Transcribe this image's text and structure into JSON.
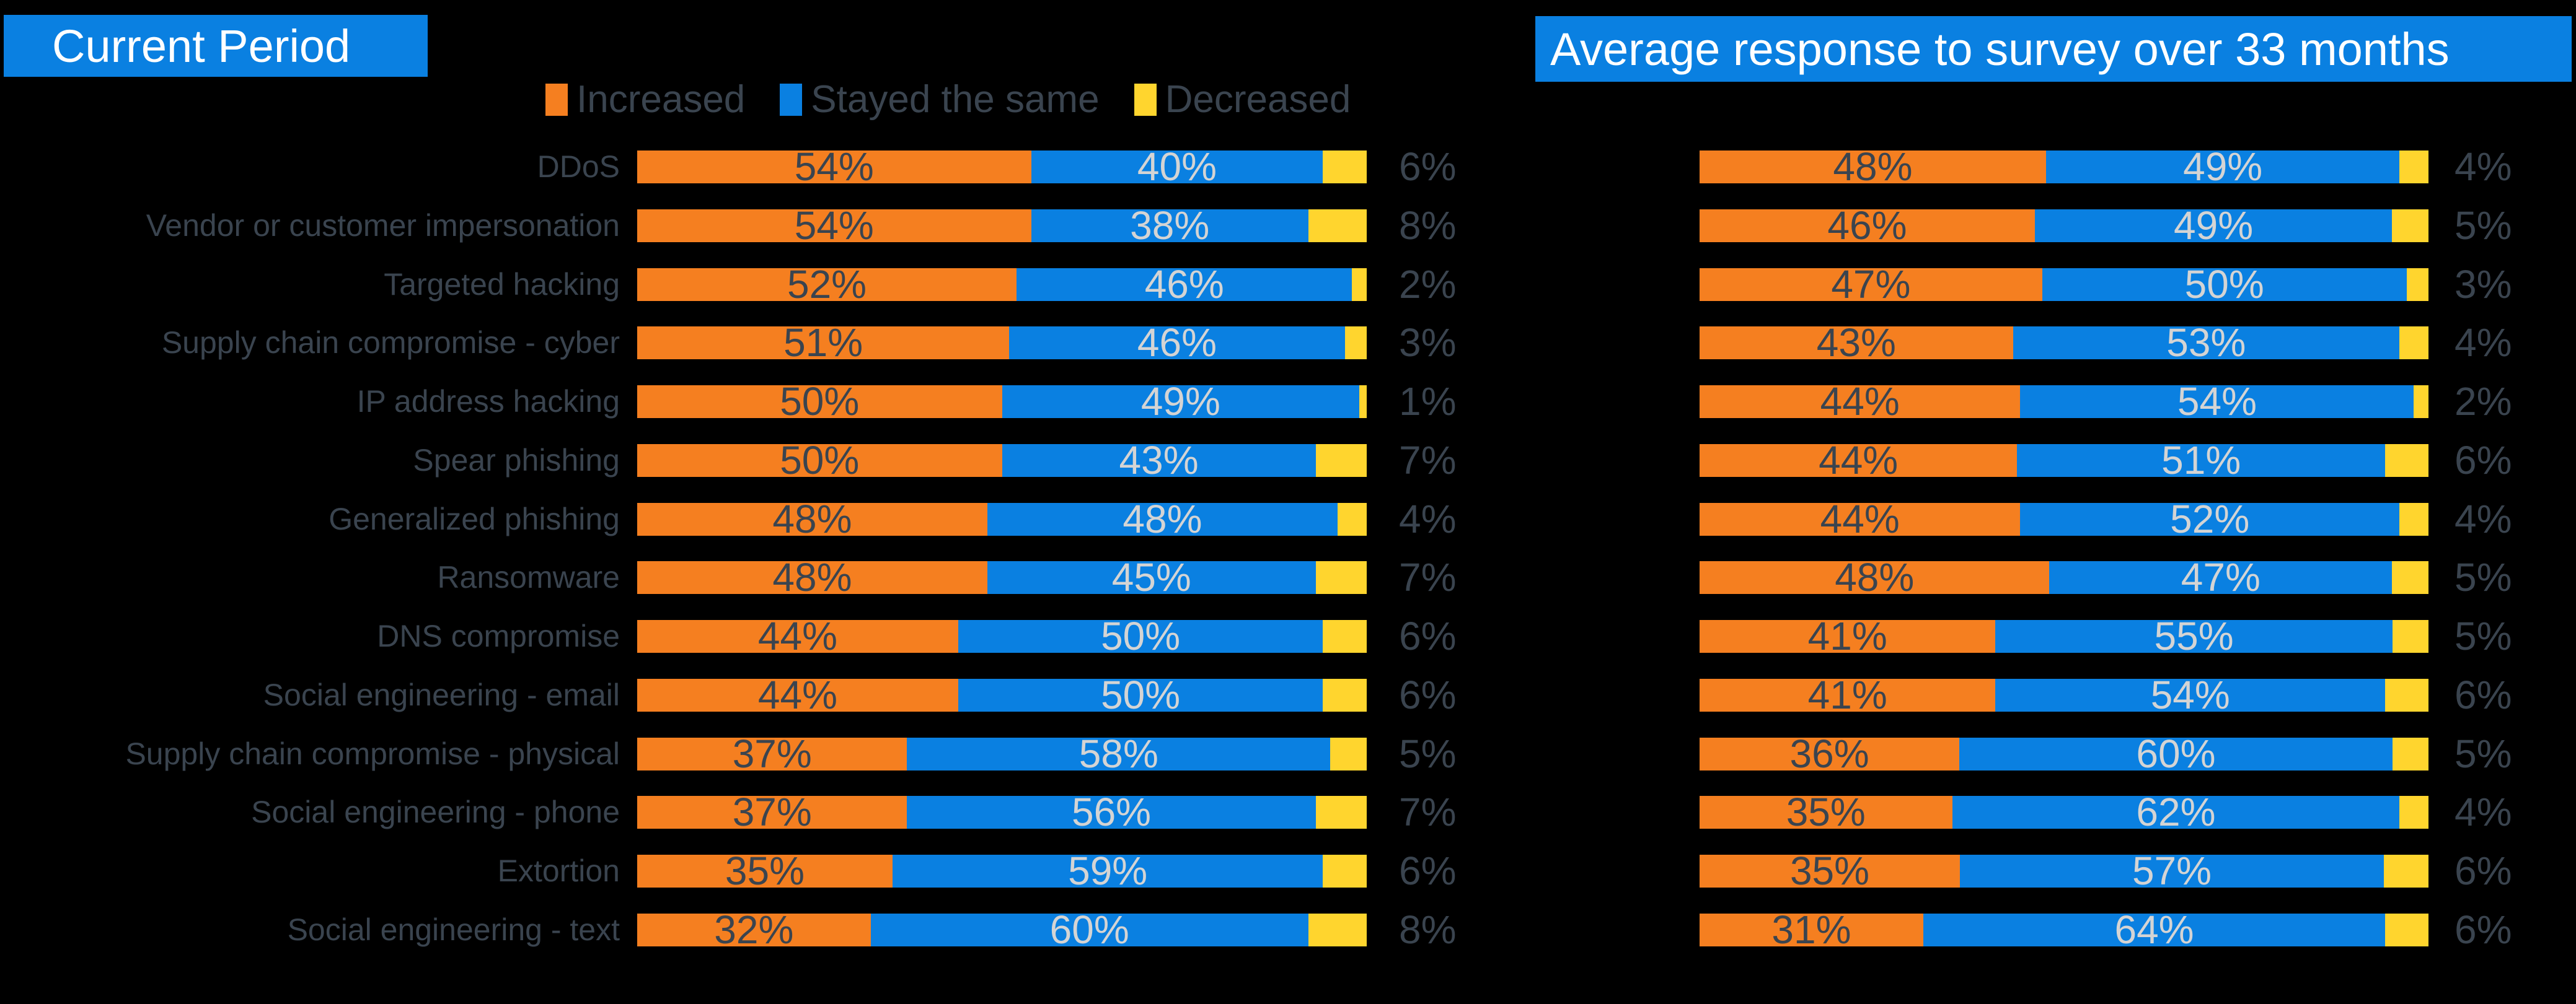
{
  "page": {
    "background": "#000000"
  },
  "titles": {
    "left": "Current Period",
    "right": "Average response to survey over 33 months"
  },
  "legend": {
    "items": [
      {
        "label": "Increased",
        "color": "#F57F20"
      },
      {
        "label": "Stayed the same",
        "color": "#0A80E1"
      },
      {
        "label": "Decreased",
        "color": "#FFD52E"
      }
    ]
  },
  "colors": {
    "increased": "#F57F20",
    "stayed_the_same": "#0A80E1",
    "decreased": "#FFD52E",
    "title_bg": "#0A80E1",
    "title_text": "#FFFFFF",
    "label_text": "#3A444F",
    "value_on_increased": "#3A444F",
    "value_on_stayed": "#D4D4D4",
    "outside_value_text": "#3A444F",
    "background": "#000000"
  },
  "chart_data": {
    "type": "bar",
    "orientation": "horizontal",
    "stacked": true,
    "unit": "%",
    "grid": false,
    "legend_position": "top",
    "series_names": [
      "Increased",
      "Stayed the same",
      "Decreased"
    ],
    "categories": [
      "DDoS",
      "Vendor or customer impersonation",
      "Targeted hacking",
      "Supply chain compromise - cyber",
      "IP address hacking",
      "Spear phishing",
      "Generalized phishing",
      "Ransomware",
      "DNS compromise",
      "Social engineering - email",
      "Supply chain compromise - physical",
      "Social engineering - phone",
      "Extortion",
      "Social engineering - text"
    ],
    "panels": [
      {
        "title": "Current Period",
        "series": [
          {
            "name": "Increased",
            "values": [
              54,
              54,
              52,
              51,
              50,
              50,
              48,
              48,
              44,
              44,
              37,
              37,
              35,
              32
            ]
          },
          {
            "name": "Stayed the same",
            "values": [
              40,
              38,
              46,
              46,
              49,
              43,
              48,
              45,
              50,
              50,
              58,
              56,
              59,
              60
            ]
          },
          {
            "name": "Decreased",
            "values": [
              6,
              8,
              2,
              3,
              1,
              7,
              4,
              7,
              6,
              6,
              5,
              7,
              6,
              8
            ]
          }
        ]
      },
      {
        "title": "Average response to survey over 33 months",
        "series": [
          {
            "name": "Increased",
            "values": [
              48,
              46,
              47,
              43,
              44,
              44,
              44,
              48,
              41,
              41,
              36,
              35,
              35,
              31
            ]
          },
          {
            "name": "Stayed the same",
            "values": [
              49,
              49,
              50,
              53,
              54,
              51,
              52,
              47,
              55,
              54,
              60,
              62,
              57,
              64
            ]
          },
          {
            "name": "Decreased",
            "values": [
              4,
              5,
              3,
              4,
              2,
              6,
              4,
              5,
              5,
              6,
              5,
              4,
              6,
              6
            ]
          }
        ]
      }
    ]
  }
}
